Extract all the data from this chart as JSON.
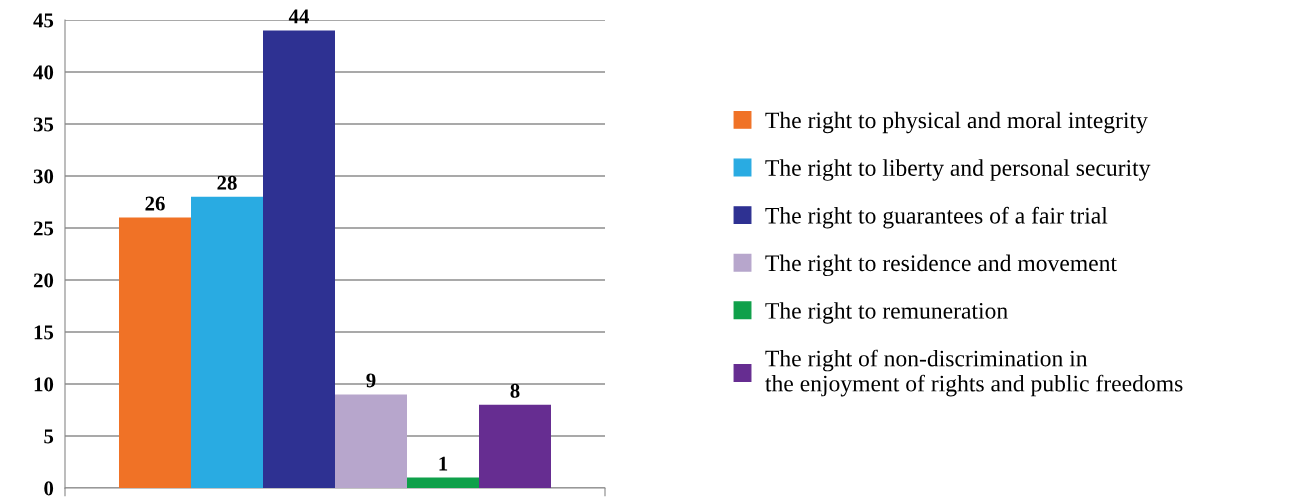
{
  "chart_data": {
    "type": "bar",
    "categories": [
      null
    ],
    "series": [
      {
        "name": "The right to physical and moral integrity",
        "color": "#f07226",
        "values": [
          26
        ]
      },
      {
        "name": "The right to liberty and personal security",
        "color": "#29abe2",
        "values": [
          28
        ]
      },
      {
        "name": "The right to guarantees of a fair trial",
        "color": "#2e3192",
        "values": [
          44
        ]
      },
      {
        "name": "The right to residence and movement",
        "color": "#b7a6cc",
        "values": [
          9
        ]
      },
      {
        "name": "The right to remuneration",
        "color": "#0fa04a",
        "values": [
          1
        ]
      },
      {
        "name": "The right of non-discrimination in\nthe enjoyment of rights and public freedoms",
        "color": "#662d91",
        "values": [
          8
        ]
      }
    ],
    "ylim": [
      0,
      45
    ],
    "yticks": [
      0,
      5,
      10,
      15,
      20,
      25,
      30,
      35,
      40,
      45
    ],
    "grid": "y",
    "legend": "right",
    "data_labels": true
  }
}
